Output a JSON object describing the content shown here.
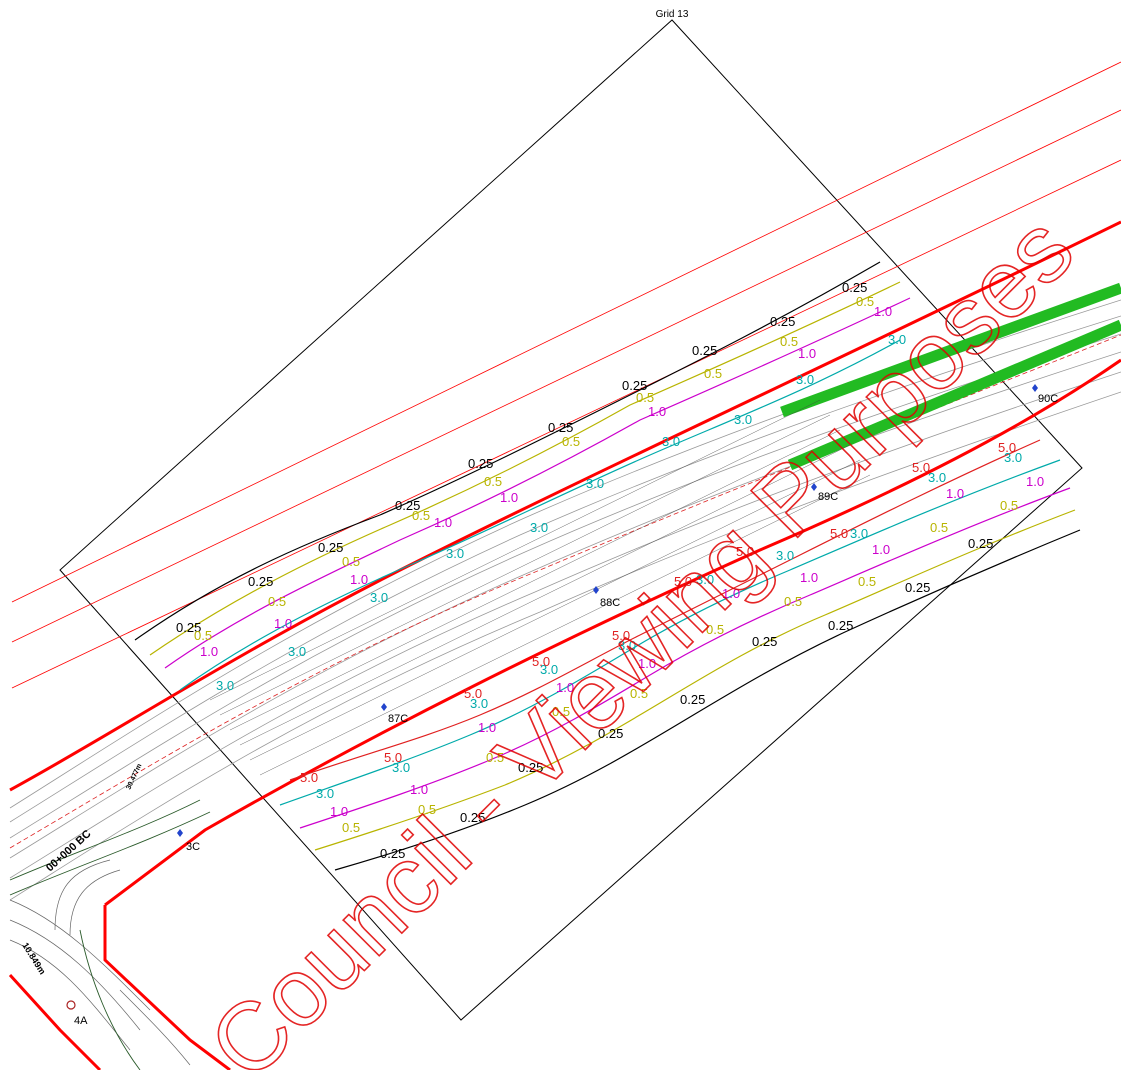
{
  "grid_title": "Grid 13",
  "watermark": "Council - Viewing Purposes",
  "colors": {
    "boundary": "#ff0000",
    "c025": "#000000",
    "c05": "#b8b400",
    "c10": "#cc00cc",
    "c30": "#00aaaa",
    "c50": "#e02020",
    "green": "#22bb22",
    "marker": "#2244cc",
    "watermark": "#e00000"
  },
  "contour_labels": {
    "c025": "0.25",
    "c05": "0.5",
    "c10": "1.0",
    "c30": "3.0",
    "c50": "5.0"
  },
  "markers": [
    {
      "id": "m90c",
      "label": "90C"
    },
    {
      "id": "m89c",
      "label": "89C"
    },
    {
      "id": "m88c",
      "label": "88C"
    },
    {
      "id": "m87c",
      "label": "87C"
    },
    {
      "id": "m3c",
      "label": "3C"
    },
    {
      "id": "m4a",
      "label": "4A"
    }
  ],
  "chainage": {
    "main": "00+000 BC",
    "len1": "10.849m",
    "len2": "30.477m"
  }
}
